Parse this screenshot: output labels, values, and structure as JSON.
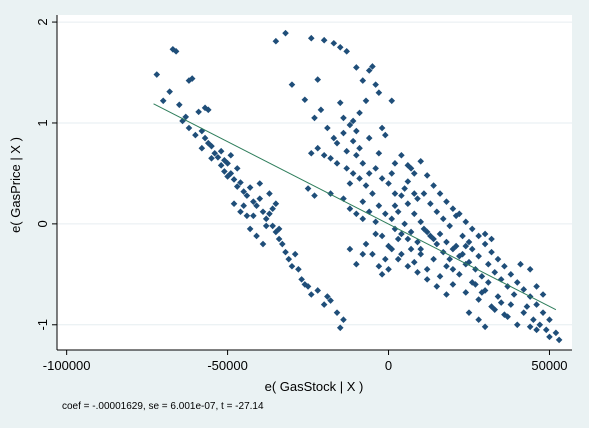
{
  "chart_data": {
    "type": "scatter",
    "title": "",
    "xlabel": "e( GasStock | X )",
    "ylabel": "e( GasPrice | X )",
    "xlim": [
      -103000,
      57000
    ],
    "ylim": [
      -1.25,
      2.07
    ],
    "x_ticks": [
      -100000,
      -50000,
      0,
      50000
    ],
    "x_tick_labels": [
      "-100000",
      "-50000",
      "0",
      "50000"
    ],
    "y_ticks": [
      -1,
      0,
      1,
      2
    ],
    "y_tick_labels": [
      "-1",
      "0",
      "1",
      "2"
    ],
    "grid": "horizontal",
    "note": "coef = -.00001629, se = 6.001e-07, t = -27.14",
    "fit_line": {
      "x": [
        -73000,
        52000
      ],
      "y": [
        1.19,
        -0.85
      ],
      "color": "#2e7d5b"
    },
    "marker_color": "#1f4e79",
    "points": [
      [
        -72000,
        1.48
      ],
      [
        -67000,
        1.73
      ],
      [
        -66000,
        1.71
      ],
      [
        -70000,
        1.22
      ],
      [
        -68000,
        1.31
      ],
      [
        -65000,
        1.18
      ],
      [
        -63000,
        1.06
      ],
      [
        -62000,
        1.42
      ],
      [
        -61000,
        1.44
      ],
      [
        -59000,
        1.11
      ],
      [
        -57000,
        1.15
      ],
      [
        -56000,
        1.13
      ],
      [
        -64000,
        1.02
      ],
      [
        -62000,
        0.95
      ],
      [
        -60000,
        0.88
      ],
      [
        -58000,
        0.92
      ],
      [
        -57000,
        0.85
      ],
      [
        -56000,
        0.8
      ],
      [
        -55000,
        0.77
      ],
      [
        -54000,
        0.7
      ],
      [
        -52000,
        0.72
      ],
      [
        -51000,
        0.63
      ],
      [
        -50000,
        0.6
      ],
      [
        -49000,
        0.68
      ],
      [
        -53000,
        0.66
      ],
      [
        -51000,
        0.52
      ],
      [
        -50000,
        0.47
      ],
      [
        -48000,
        0.44
      ],
      [
        -47000,
        0.37
      ],
      [
        -46000,
        0.41
      ],
      [
        -45000,
        0.32
      ],
      [
        -44000,
        0.28
      ],
      [
        -43000,
        0.36
      ],
      [
        -42000,
        0.22
      ],
      [
        -41000,
        0.18
      ],
      [
        -40000,
        0.25
      ],
      [
        -39000,
        0.12
      ],
      [
        -38000,
        0.05
      ],
      [
        -37000,
        0.1
      ],
      [
        -36000,
        -0.02
      ],
      [
        -35000,
        -0.08
      ],
      [
        -34000,
        -0.15
      ],
      [
        -33000,
        -0.2
      ],
      [
        -32000,
        -0.28
      ],
      [
        -31000,
        -0.35
      ],
      [
        -30000,
        -0.42
      ],
      [
        -29000,
        -0.3
      ],
      [
        -28000,
        -0.45
      ],
      [
        -27000,
        -0.55
      ],
      [
        -26000,
        -0.6
      ],
      [
        -25000,
        -0.62
      ],
      [
        -24000,
        -0.7
      ],
      [
        -20000,
        -0.8
      ],
      [
        -18000,
        -0.76
      ],
      [
        -16000,
        -0.88
      ],
      [
        -15000,
        -1.03
      ],
      [
        -14000,
        -0.95
      ],
      [
        -19000,
        -0.72
      ],
      [
        -22000,
        -0.66
      ],
      [
        -46000,
        0.12
      ],
      [
        -44000,
        0.08
      ],
      [
        -47000,
        0.55
      ],
      [
        -49000,
        0.5
      ],
      [
        -52000,
        0.58
      ],
      [
        -55000,
        0.65
      ],
      [
        -58000,
        0.75
      ],
      [
        -48000,
        0.2
      ],
      [
        -43000,
        -0.05
      ],
      [
        -41000,
        -0.12
      ],
      [
        -39000,
        -0.2
      ],
      [
        -37000,
        0.3
      ],
      [
        -35000,
        0.2
      ],
      [
        -40000,
        0.4
      ],
      [
        -45000,
        0.18
      ],
      [
        -42000,
        0.08
      ],
      [
        -38000,
        -0.02
      ],
      [
        -36000,
        0.15
      ],
      [
        -34000,
        -0.05
      ],
      [
        -32000,
        1.89
      ],
      [
        -35000,
        1.81
      ],
      [
        -24000,
        1.84
      ],
      [
        -20000,
        1.82
      ],
      [
        -17000,
        1.79
      ],
      [
        -15000,
        1.75
      ],
      [
        -13000,
        1.71
      ],
      [
        -10000,
        1.55
      ],
      [
        -8000,
        1.42
      ],
      [
        -22000,
        1.43
      ],
      [
        -26000,
        1.23
      ],
      [
        -30000,
        1.38
      ],
      [
        -23000,
        1.05
      ],
      [
        -21000,
        1.13
      ],
      [
        -19000,
        0.95
      ],
      [
        -17000,
        0.85
      ],
      [
        -15000,
        1.2
      ],
      [
        -14000,
        1.05
      ],
      [
        -12000,
        0.98
      ],
      [
        -11000,
        1.02
      ],
      [
        -10000,
        0.92
      ],
      [
        -9000,
        1.1
      ],
      [
        -7000,
        1.22
      ],
      [
        -6000,
        1.52
      ],
      [
        -5000,
        1.56
      ],
      [
        -4000,
        1.38
      ],
      [
        -3000,
        1.3
      ],
      [
        -2000,
        0.95
      ],
      [
        -1000,
        0.88
      ],
      [
        1000,
        1.22
      ],
      [
        -24000,
        0.7
      ],
      [
        -22000,
        0.75
      ],
      [
        -20000,
        0.68
      ],
      [
        -16000,
        0.6
      ],
      [
        -13000,
        0.55
      ],
      [
        -11000,
        0.5
      ],
      [
        -9000,
        0.45
      ],
      [
        -7000,
        0.38
      ],
      [
        -25000,
        0.35
      ],
      [
        -23000,
        0.28
      ],
      [
        -18000,
        0.3
      ],
      [
        -14000,
        0.25
      ],
      [
        -12000,
        0.4
      ],
      [
        -8000,
        0.22
      ],
      [
        -5000,
        0.3
      ],
      [
        -3000,
        0.18
      ],
      [
        -1000,
        0.1
      ],
      [
        1000,
        0.05
      ],
      [
        2000,
        0.18
      ],
      [
        3000,
        0.12
      ],
      [
        4000,
        0.28
      ],
      [
        5000,
        0.35
      ],
      [
        6000,
        0.42
      ],
      [
        7000,
        0.55
      ],
      [
        8000,
        0.5
      ],
      [
        10000,
        0.62
      ],
      [
        12000,
        0.48
      ],
      [
        14000,
        0.38
      ],
      [
        16000,
        0.3
      ],
      [
        18000,
        0.22
      ],
      [
        20000,
        0.15
      ],
      [
        22000,
        0.1
      ],
      [
        24000,
        0.02
      ],
      [
        26000,
        -0.05
      ],
      [
        28000,
        -0.12
      ],
      [
        30000,
        -0.2
      ],
      [
        32000,
        -0.28
      ],
      [
        34000,
        -0.35
      ],
      [
        36000,
        -0.42
      ],
      [
        38000,
        -0.5
      ],
      [
        40000,
        -0.58
      ],
      [
        42000,
        -0.65
      ],
      [
        44000,
        -0.72
      ],
      [
        46000,
        -0.8
      ],
      [
        48000,
        -0.88
      ],
      [
        50000,
        -0.95
      ],
      [
        52000,
        -1.08
      ],
      [
        40000,
        -1.0
      ],
      [
        36000,
        -0.9
      ],
      [
        32000,
        -0.82
      ],
      [
        28000,
        -0.75
      ],
      [
        24000,
        -0.68
      ],
      [
        20000,
        -0.6
      ],
      [
        16000,
        -0.52
      ],
      [
        12000,
        -0.45
      ],
      [
        8000,
        -0.38
      ],
      [
        4000,
        -0.3
      ],
      [
        0,
        -0.22
      ],
      [
        -2000,
        -0.12
      ],
      [
        2000,
        -0.05
      ],
      [
        6000,
        -0.15
      ],
      [
        10000,
        -0.25
      ],
      [
        14000,
        -0.35
      ],
      [
        18000,
        -0.42
      ],
      [
        22000,
        -0.5
      ],
      [
        26000,
        -0.58
      ],
      [
        30000,
        -0.66
      ],
      [
        34000,
        -0.72
      ],
      [
        38000,
        -0.8
      ],
      [
        42000,
        -0.88
      ],
      [
        46000,
        -1.05
      ],
      [
        50000,
        -1.12
      ],
      [
        53000,
        -1.15
      ],
      [
        44000,
        -1.02
      ],
      [
        30000,
        -1.02
      ],
      [
        28000,
        -0.95
      ],
      [
        25000,
        -0.88
      ],
      [
        5000,
        0.0
      ],
      [
        7000,
        -0.08
      ],
      [
        9000,
        -0.18
      ],
      [
        11000,
        -0.05
      ],
      [
        13000,
        -0.12
      ],
      [
        15000,
        -0.2
      ],
      [
        17000,
        -0.28
      ],
      [
        19000,
        -0.35
      ],
      [
        21000,
        -0.22
      ],
      [
        23000,
        -0.3
      ],
      [
        25000,
        -0.38
      ],
      [
        27000,
        -0.45
      ],
      [
        29000,
        -0.52
      ],
      [
        31000,
        -0.4
      ],
      [
        33000,
        -0.48
      ],
      [
        35000,
        -0.55
      ],
      [
        37000,
        -0.62
      ],
      [
        39000,
        -0.7
      ],
      [
        3000,
        -0.15
      ],
      [
        1000,
        -0.25
      ],
      [
        -1000,
        -0.35
      ],
      [
        -3000,
        -0.42
      ],
      [
        -5000,
        -0.3
      ],
      [
        -7000,
        -0.2
      ],
      [
        -4000,
        -0.1
      ],
      [
        6000,
        0.2
      ],
      [
        8000,
        0.1
      ],
      [
        10000,
        0.02
      ],
      [
        12000,
        -0.08
      ],
      [
        14000,
        -0.15
      ],
      [
        16000,
        -0.1
      ],
      [
        18000,
        -0.18
      ],
      [
        20000,
        -0.25
      ],
      [
        22000,
        -0.32
      ],
      [
        24000,
        -0.4
      ],
      [
        26000,
        -0.25
      ],
      [
        28000,
        -0.32
      ],
      [
        30000,
        -0.1
      ],
      [
        32000,
        -0.15
      ],
      [
        15000,
        0.12
      ],
      [
        11000,
        0.3
      ],
      [
        9000,
        0.25
      ],
      [
        13000,
        0.2
      ],
      [
        17000,
        0.05
      ],
      [
        19000,
        -0.02
      ],
      [
        21000,
        0.08
      ],
      [
        23000,
        -0.12
      ],
      [
        25000,
        -0.18
      ],
      [
        27000,
        -0.6
      ],
      [
        29000,
        -0.68
      ],
      [
        31000,
        -0.58
      ],
      [
        33000,
        -0.85
      ],
      [
        35000,
        -0.78
      ],
      [
        37000,
        -0.92
      ],
      [
        18000,
        -0.7
      ],
      [
        15000,
        -0.62
      ],
      [
        12000,
        -0.55
      ],
      [
        9000,
        -0.48
      ],
      [
        6000,
        -0.42
      ],
      [
        3000,
        -0.35
      ],
      [
        0,
        -0.45
      ],
      [
        -2000,
        -0.5
      ],
      [
        20000,
        -0.45
      ],
      [
        24000,
        -0.22
      ],
      [
        10000,
        -0.3
      ],
      [
        7000,
        -0.25
      ],
      [
        4000,
        -0.1
      ],
      [
        2000,
        0.3
      ],
      [
        0,
        0.4
      ],
      [
        -2000,
        0.45
      ],
      [
        -4000,
        0.55
      ],
      [
        -6000,
        0.5
      ],
      [
        -8000,
        0.6
      ],
      [
        -3000,
        0.7
      ],
      [
        2000,
        0.6
      ],
      [
        4000,
        0.68
      ],
      [
        6000,
        0.58
      ],
      [
        8000,
        0.3
      ],
      [
        1000,
        0.5
      ],
      [
        -9000,
        0.75
      ],
      [
        -11000,
        0.82
      ],
      [
        -13000,
        0.72
      ],
      [
        -16000,
        0.8
      ],
      [
        -18000,
        0.65
      ],
      [
        -14000,
        0.9
      ],
      [
        -10000,
        0.68
      ],
      [
        -6000,
        0.85
      ],
      [
        -12000,
        0.15
      ],
      [
        -10000,
        0.1
      ],
      [
        -8000,
        0.05
      ],
      [
        -6000,
        0.12
      ],
      [
        -4000,
        0.02
      ],
      [
        -8000,
        -0.3
      ],
      [
        -10000,
        -0.4
      ],
      [
        -12000,
        -0.25
      ],
      [
        44000,
        -0.45
      ],
      [
        46000,
        -0.62
      ],
      [
        48000,
        -0.7
      ],
      [
        41000,
        -0.4
      ],
      [
        43000,
        -0.82
      ],
      [
        45000,
        -0.95
      ],
      [
        47000,
        -1.0
      ],
      [
        49000,
        -1.05
      ]
    ]
  }
}
